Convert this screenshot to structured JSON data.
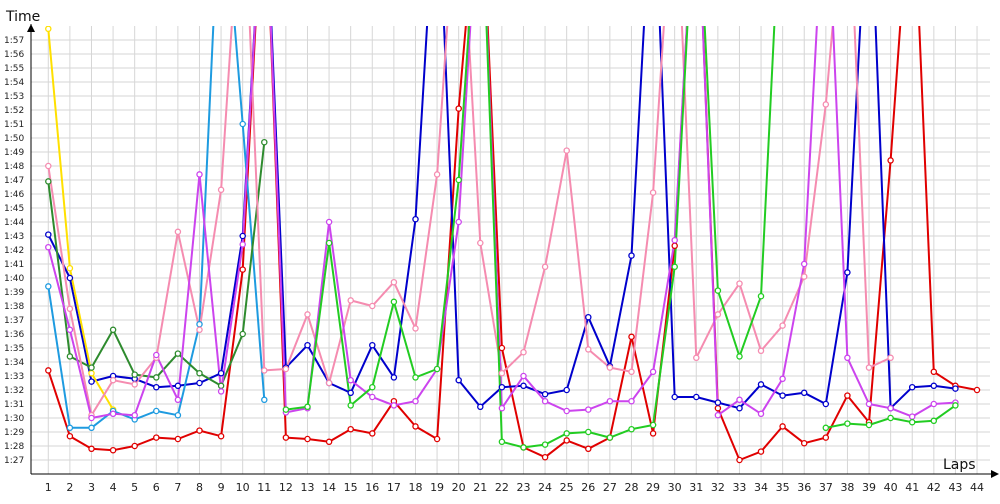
{
  "chart_data": {
    "type": "line",
    "title": "",
    "xlabel": "Laps",
    "ylabel": "Time",
    "x": [
      1,
      2,
      3,
      4,
      5,
      6,
      7,
      8,
      9,
      10,
      11,
      12,
      13,
      14,
      15,
      16,
      17,
      18,
      19,
      20,
      21,
      22,
      23,
      24,
      25,
      26,
      27,
      28,
      29,
      30,
      31,
      32,
      33,
      34,
      35,
      36,
      37,
      38,
      39,
      40,
      41,
      42,
      43,
      44
    ],
    "x_tick_labels": [
      "1",
      "2",
      "3",
      "4",
      "5",
      "6",
      "7",
      "8",
      "9",
      "10",
      "11",
      "12",
      "13",
      "14",
      "15",
      "16",
      "17",
      "18",
      "19",
      "20",
      "21",
      "22",
      "23",
      "24",
      "25",
      "26",
      "27",
      "28",
      "29",
      "30",
      "31",
      "32",
      "33",
      "34",
      "35",
      "36",
      "37",
      "38",
      "39",
      "40",
      "41",
      "42",
      "43",
      "44"
    ],
    "y_tick_labels": [
      "1:27",
      "1:28",
      "1:29",
      "1:30",
      "1:31",
      "1:32",
      "1:33",
      "1:34",
      "1:35",
      "1:36",
      "1:37",
      "1:38",
      "1:39",
      "1:40",
      "1:41",
      "1:42",
      "1:43",
      "1:44",
      "1:45",
      "1:46",
      "1:47",
      "1:48",
      "1:49",
      "1:50",
      "1:51",
      "1:52",
      "1:53",
      "1:54",
      "1:55",
      "1:56",
      "1:57"
    ],
    "ylim": [
      "1:26",
      "1:58"
    ],
    "xlim": [
      0.2,
      44.6
    ],
    "grid": true,
    "legend": "none",
    "series": [
      {
        "color": "#e00000",
        "values": [
          "1:33.4",
          "1:28.7",
          "1:27.8",
          "1:27.7",
          "1:28.0",
          "1:28.6",
          "1:28.5",
          "1:29.1",
          "1:28.7",
          "1:40.6",
          "2:10",
          "1:28.6",
          "1:28.5",
          "1:28.3",
          "1:29.2",
          "1:28.9",
          "1:31.2",
          "1:29.4",
          "1:28.5",
          "1:52.1",
          "2:10",
          "1:35.0",
          "1:27.9",
          "1:27.2",
          "1:28.4",
          "1:27.8",
          "1:28.6",
          "1:35.8",
          "1:28.9",
          "1:42.3",
          "2:10",
          "1:30.7",
          "1:27.0",
          "1:27.6",
          "1:29.4",
          "1:28.2",
          "1:28.6",
          "1:31.6",
          "1:29.7",
          "1:48.4",
          "2:10",
          "1:33.3",
          "1:32.3",
          "1:32.0"
        ]
      },
      {
        "color": "#0000cc",
        "values": [
          "1:43.1",
          "1:40.0",
          "1:32.6",
          "1:33.0",
          "1:32.8",
          "1:32.2",
          "1:32.3",
          "1:32.5",
          "1:33.2",
          "1:43.0",
          "2:10",
          "1:33.6",
          "1:35.2",
          "1:32.5",
          "1:31.8",
          "1:35.2",
          "1:32.9",
          "1:44.2",
          "2:10",
          "1:32.7",
          "1:30.8",
          "1:32.2",
          "1:32.3",
          "1:31.7",
          "1:32.0",
          "1:37.2",
          "1:33.7",
          "1:41.6",
          "2:10",
          "1:31.5",
          "1:31.5",
          "1:31.1",
          "1:30.7",
          "1:32.4",
          "1:31.6",
          "1:31.8",
          "1:31.0",
          "1:40.4",
          "2:10",
          "1:30.7",
          "1:32.2",
          "1:32.3",
          "1:32.1",
          null
        ]
      },
      {
        "color": "#ffe000",
        "values": [
          "1:57.8",
          "1:40.7",
          "1:33.2",
          "1:30.6",
          null,
          null,
          null,
          null,
          null,
          null,
          null,
          null,
          null,
          null,
          null,
          null,
          null,
          null,
          null,
          null,
          null,
          null,
          null,
          null,
          null,
          null,
          null,
          null,
          null,
          null,
          null,
          null,
          null,
          null,
          null,
          null,
          null,
          null,
          null,
          null,
          null,
          null,
          null,
          null
        ]
      },
      {
        "color": "#1e9be0",
        "values": [
          "1:39.4",
          "1:29.3",
          "1:29.3",
          "1:30.5",
          "1:29.9",
          "1:30.5",
          "1:30.2",
          "1:36.7",
          "2:10",
          "1:51.0",
          "1:31.3",
          null,
          null,
          null,
          null,
          null,
          null,
          null,
          null,
          null,
          null,
          null,
          null,
          null,
          null,
          null,
          null,
          null,
          null,
          null,
          null,
          null,
          null,
          null,
          null,
          null,
          null,
          null,
          null,
          null,
          null,
          null,
          null,
          null
        ]
      },
      {
        "color": "#2e8b2e",
        "values": [
          "1:46.9",
          "1:34.4",
          "1:33.6",
          "1:36.3",
          "1:33.1",
          "1:32.9",
          "1:34.6",
          "1:33.2",
          "1:32.3",
          "1:36.0",
          "1:49.7",
          null,
          null,
          null,
          null,
          null,
          null,
          null,
          null,
          null,
          null,
          null,
          null,
          null,
          null,
          null,
          null,
          null,
          null,
          null,
          null,
          null,
          null,
          null,
          null,
          null,
          null,
          null,
          null,
          null,
          null,
          null,
          null,
          null
        ]
      },
      {
        "color": "#f58cb0",
        "values": [
          "1:48.0",
          "1:37.8",
          "1:30.2",
          "1:32.7",
          "1:32.4",
          "1:34.3",
          "1:43.3",
          "1:36.3",
          "1:46.3",
          "2:10",
          "1:33.4",
          "1:33.5",
          "1:37.4",
          "1:32.5",
          "1:38.4",
          "1:38.0",
          "1:39.7",
          "1:36.4",
          "1:47.4",
          "2:10",
          "1:42.5",
          "1:33.2",
          "1:34.7",
          "1:40.8",
          "1:49.1",
          "1:34.9",
          "1:33.6",
          "1:33.3",
          "1:46.1",
          "2:10",
          "1:34.3",
          "1:37.4",
          "1:39.6",
          "1:34.8",
          "1:36.6",
          "1:40.1",
          "1:52.4",
          "2:10",
          "1:33.6",
          "1:34.3",
          null,
          null,
          null,
          null
        ]
      },
      {
        "color": "#cc44ee",
        "values": [
          "1:42.2",
          "1:36.3",
          "1:30.0",
          "1:30.3",
          "1:30.2",
          "1:34.5",
          "1:31.3",
          "1:47.4",
          "1:31.9",
          "1:42.4",
          "2:10",
          "1:30.4",
          "1:30.7",
          "1:44.0",
          "1:32.7",
          "1:31.5",
          "1:30.9",
          "1:31.2",
          "1:33.5",
          "1:44.0",
          "2:10",
          "1:30.7",
          "1:33.0",
          "1:31.2",
          "1:30.5",
          "1:30.6",
          "1:31.2",
          "1:31.2",
          "1:33.3",
          "1:42.7",
          "2:10",
          "1:30.2",
          "1:31.3",
          "1:30.3",
          "1:32.8",
          "1:41.0",
          "2:10",
          "1:34.3",
          "1:31.0",
          "1:30.7",
          "1:30.1",
          "1:31.0",
          "1:31.1",
          null
        ]
      },
      {
        "color": "#22cc22",
        "values": [
          null,
          null,
          null,
          null,
          null,
          null,
          null,
          null,
          null,
          null,
          null,
          "1:30.6",
          "1:30.8",
          "1:42.5",
          "1:30.9",
          "1:32.2",
          "1:38.3",
          "1:32.9",
          "1:33.5",
          "1:47.0",
          "2:10",
          "1:28.3",
          "1:27.9",
          "1:28.1",
          "1:28.9",
          "1:29.0",
          "1:28.6",
          "1:29.2",
          "1:29.5",
          "1:40.8",
          "2:10",
          "1:39.1",
          "1:34.4",
          "1:38.7",
          "2:10",
          null,
          "1:29.3",
          "1:29.6",
          "1:29.5",
          "1:30.0",
          "1:29.7",
          "1:29.8",
          "1:30.9",
          null
        ]
      }
    ]
  }
}
